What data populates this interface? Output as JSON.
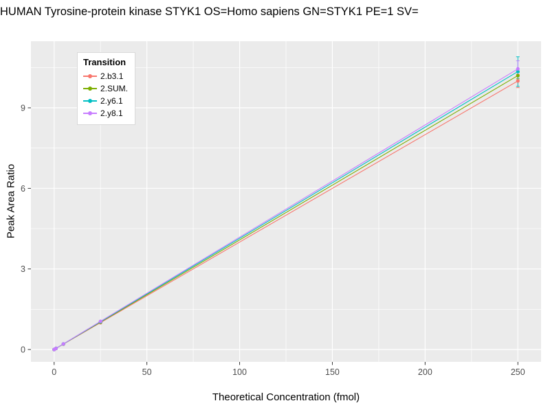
{
  "chart_data": {
    "type": "line",
    "title": "HUMAN Tyrosine-protein kinase STYK1 OS=Homo sapiens GN=STYK1 PE=1 SV=",
    "xlabel": "Theoretical Concentration (fmol)",
    "ylabel": "Peak Area Ratio",
    "legend_title": "Transition",
    "legend_position": "top-left-inside",
    "grid": true,
    "x": [
      0,
      1,
      5,
      25,
      250
    ],
    "x_ticks": [
      0,
      50,
      100,
      150,
      200,
      250
    ],
    "y_ticks": [
      0,
      3,
      6,
      9
    ],
    "xlim": [
      -12.5,
      262.5
    ],
    "ylim": [
      -0.46,
      11.48
    ],
    "series": [
      {
        "name": "2.b3.1",
        "color": "#F8766D",
        "values": [
          0,
          0.04,
          0.2,
          1.0,
          10.0
        ],
        "error_at_max": 0.25
      },
      {
        "name": "2.SUM.",
        "color": "#7CAE00",
        "values": [
          0,
          0.041,
          0.205,
          1.02,
          10.2
        ],
        "error_at_max": 0.12
      },
      {
        "name": "2.y6.1",
        "color": "#00BFC4",
        "values": [
          0,
          0.0415,
          0.207,
          1.035,
          10.35
        ],
        "error_at_max": 0.55
      },
      {
        "name": "2.y8.1",
        "color": "#C77CFF",
        "values": [
          0,
          0.042,
          0.21,
          1.05,
          10.45
        ],
        "error_at_max": 0.3
      }
    ],
    "colors": {
      "panel_bg": "#EBEBEB",
      "grid_major": "#FFFFFF",
      "grid_minor": "#F7F7F7",
      "tick_mark": "#333333",
      "tick_label": "#4D4D4D",
      "text": "#000000"
    }
  }
}
